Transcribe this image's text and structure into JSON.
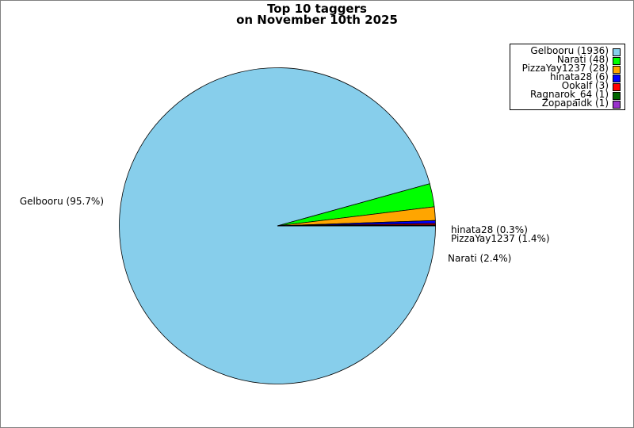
{
  "chart_data": {
    "type": "pie",
    "title": [
      "Top 10 taggers",
      "on November 10th 2025"
    ],
    "slices": [
      {
        "name": "Gelbooru",
        "value": 1936,
        "legend": "Gelbooru (1936)",
        "label": "Gelbooru (95.7%)",
        "color": "#87ceeb"
      },
      {
        "name": "Narati",
        "value": 48,
        "legend": "Narati (48)",
        "label": "Narati (2.4%)",
        "color": "#00ff00"
      },
      {
        "name": "PizzaYay1237",
        "value": 28,
        "legend": "PizzaYay1237 (28)",
        "label": "PizzaYay1237 (1.4%)",
        "color": "#ffa500"
      },
      {
        "name": "hinata28",
        "value": 6,
        "legend": "hinata28 (6)",
        "label": "hinata28 (0.3%)",
        "color": "#0000ff"
      },
      {
        "name": "Ookalf",
        "value": 3,
        "legend": "Ookalf (3)",
        "label": "",
        "color": "#ff0000"
      },
      {
        "name": "Ragnarok_64",
        "value": 1,
        "legend": "Ragnarok_64 (1)",
        "label": "",
        "color": "#006400"
      },
      {
        "name": "Zopapaidk",
        "value": 1,
        "legend": "Zopapaidk (1)",
        "label": "",
        "color": "#9932cc"
      }
    ],
    "legend_position": "top-right"
  }
}
